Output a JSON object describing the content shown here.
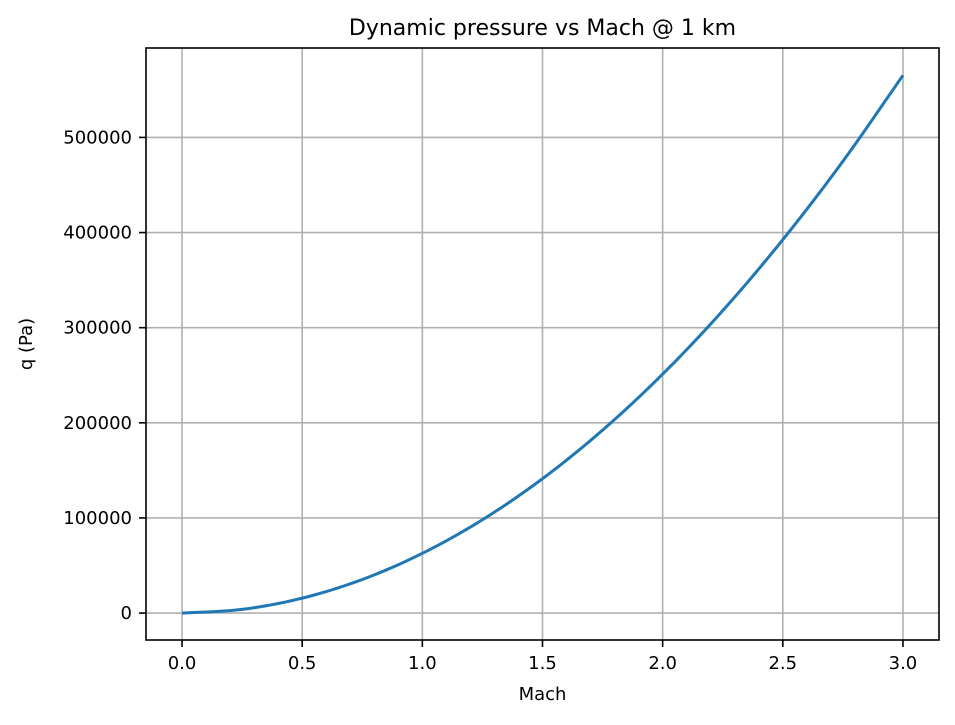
{
  "chart_data": {
    "type": "line",
    "title": "Dynamic pressure vs Mach @ 1 km",
    "xlabel": "Mach",
    "ylabel": "q (Pa)",
    "xlim": [
      -0.15,
      3.15
    ],
    "ylim": [
      -28300,
      594000
    ],
    "xticks": [
      0.0,
      0.5,
      1.0,
      1.5,
      2.0,
      2.5,
      3.0
    ],
    "xtick_labels": [
      "0.0",
      "0.5",
      "1.0",
      "1.5",
      "2.0",
      "2.5",
      "3.0"
    ],
    "yticks": [
      0,
      100000,
      200000,
      300000,
      400000,
      500000
    ],
    "ytick_labels": [
      "0",
      "100000",
      "200000",
      "300000",
      "400000",
      "500000"
    ],
    "grid": true,
    "series": [
      {
        "color": "#1f77b4",
        "x": [
          0.0,
          0.25,
          0.5,
          0.75,
          1.0,
          1.25,
          1.5,
          1.75,
          2.0,
          2.25,
          2.5,
          2.75,
          3.0
        ],
        "y": [
          0,
          3900,
          15700,
          35300,
          62800,
          98100,
          141300,
          192300,
          251200,
          317900,
          392500,
          474900,
          565200
        ]
      }
    ]
  }
}
